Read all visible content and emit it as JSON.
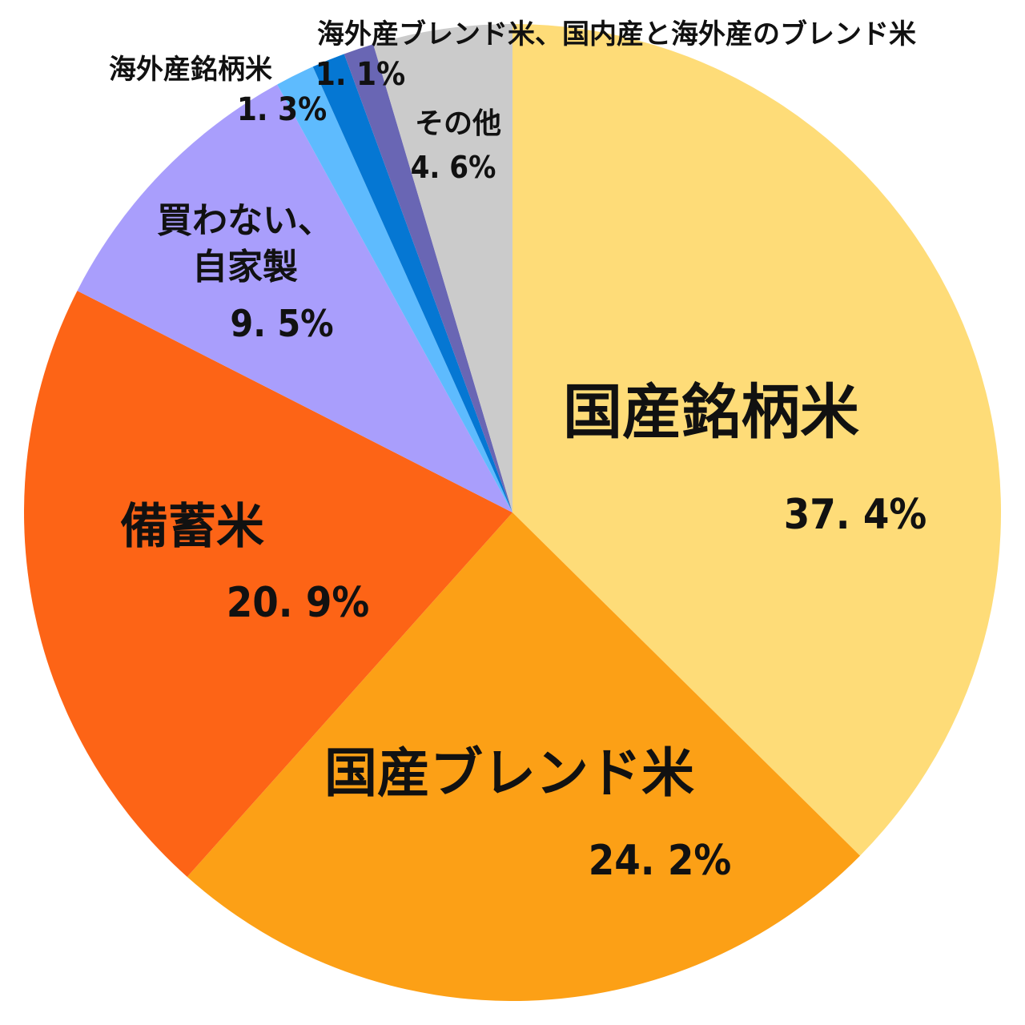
{
  "chart_data": {
    "type": "pie",
    "start": "top",
    "direction": "clockwise",
    "slices": [
      {
        "label": "国産銘柄米",
        "label_lines": [
          "国産銘柄米"
        ],
        "value": 37.4,
        "value_text": "37. 4%",
        "color": "#FEDC78"
      },
      {
        "label": "国産ブレンド米",
        "label_lines": [
          "国産ブレンド米"
        ],
        "value": 24.2,
        "value_text": "24. 2%",
        "color": "#FCA016"
      },
      {
        "label": "備蓄米",
        "label_lines": [
          "備蓄米"
        ],
        "value": 20.9,
        "value_text": "20. 9%",
        "color": "#FD6416"
      },
      {
        "label": "買わない、自家製",
        "label_lines": [
          "買わない、",
          "自家製"
        ],
        "value": 9.5,
        "value_text": "9. 5%",
        "color": "#A99EFC"
      },
      {
        "label": "海外産銘柄米",
        "label_lines": [
          "海外産銘柄米"
        ],
        "value": 1.3,
        "value_text": "1. 3%",
        "color": "#5EBBFE"
      },
      {
        "label": "海外産ブレンド米、国内産と海外産のブレンド米",
        "label_lines": [
          "海外産ブレンド米、国内産と海外産のブレンド米"
        ],
        "value": 1.1,
        "value_text": "1. 1%",
        "color": "#0577D3"
      },
      {
        "label": "",
        "label_lines": [],
        "value": 1.0,
        "value_text": "",
        "color": "#6966B4"
      },
      {
        "label": "その他",
        "label_lines": [
          "その他"
        ],
        "value": 4.6,
        "value_text": "4. 6%",
        "color": "#CBCBCB"
      }
    ]
  }
}
